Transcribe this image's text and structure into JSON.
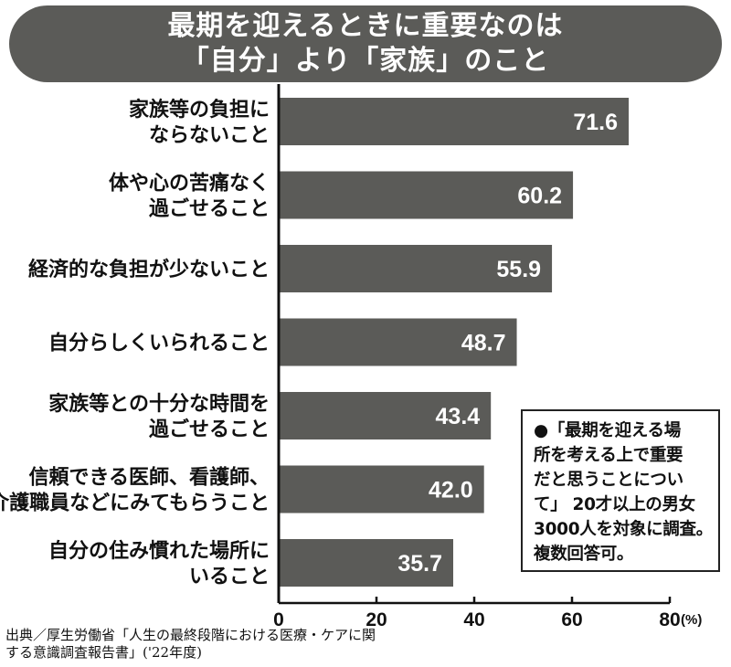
{
  "title": {
    "line1": "最期を迎えるときに重要なのは",
    "line2": "「自分」より「家族」のこと"
  },
  "colors": {
    "title_bg": "#5b5b58",
    "bar": "#5b5b58",
    "bar_value_text": "#ffffff",
    "axis": "#111111"
  },
  "chart_data": {
    "type": "bar",
    "orientation": "horizontal",
    "categories": [
      [
        "家族等の負担に",
        "ならないこと"
      ],
      [
        "体や心の苦痛なく",
        "過ごせること"
      ],
      [
        "経済的な負担が少ないこと"
      ],
      [
        "自分らしくいられること"
      ],
      [
        "家族等との十分な時間を",
        "過ごせること"
      ],
      [
        "信頼できる医師、看護師、",
        "介護職員などにみてもらうこと"
      ],
      [
        "自分の住み慣れた場所に",
        "いること"
      ]
    ],
    "values": [
      71.6,
      60.2,
      55.9,
      48.7,
      43.4,
      42.0,
      35.7
    ],
    "value_labels": [
      "71.6",
      "60.2",
      "55.9",
      "48.7",
      "43.4",
      "42.0",
      "35.7"
    ],
    "xlim": [
      0,
      80
    ],
    "ticks": [
      0,
      20,
      40,
      60,
      80
    ],
    "tick_labels": [
      "0",
      "20",
      "40",
      "60",
      "80"
    ],
    "unit": "(%)",
    "grid": false,
    "legend": "none"
  },
  "note": {
    "lines": [
      "●「最期を迎える場",
      "所を考える上で重要",
      "だと思うことについ",
      "て」 20才以上の男女",
      "3000人を対象に調査。",
      "複数回答可。"
    ]
  },
  "source": {
    "line1": "出典／厚生労働省「人生の最終段階における医療・ケアに関",
    "line2": "する意識調査報告書」('22年度)"
  }
}
